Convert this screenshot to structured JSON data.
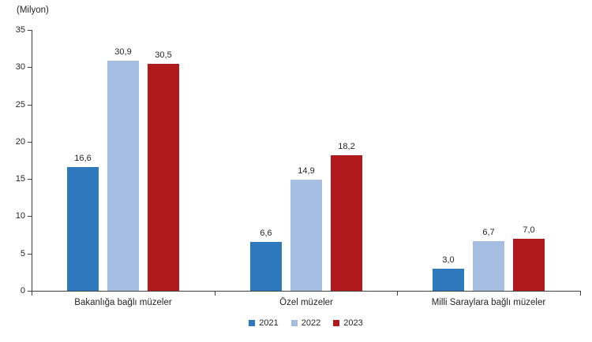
{
  "chart_data": {
    "type": "bar",
    "unit_label": "(Milyon)",
    "categories": [
      "Bakanlığa bağlı müzeler",
      "Özel müzeler",
      "Milli Saraylara bağlı müzeler"
    ],
    "series": [
      {
        "name": "2021",
        "color": "#2E79BE",
        "values": [
          16.6,
          6.6,
          3.0
        ],
        "labels": [
          "16,6",
          "6,6",
          "3,0"
        ]
      },
      {
        "name": "2022",
        "color": "#A6BEE2",
        "values": [
          30.9,
          14.9,
          6.7
        ],
        "labels": [
          "30,9",
          "14,9",
          "6,7"
        ]
      },
      {
        "name": "2023",
        "color": "#B11A1C",
        "values": [
          30.5,
          18.2,
          7.0
        ],
        "labels": [
          "30,5",
          "18,2",
          "7,0"
        ]
      }
    ],
    "ylim": [
      0,
      35
    ],
    "yticks": [
      "0",
      "5",
      "10",
      "15",
      "20",
      "25",
      "30",
      "35"
    ],
    "ytick_step": 5,
    "grid": false,
    "legend_position": "bottom",
    "axis_color": "#404040",
    "text_color": "#262626"
  }
}
